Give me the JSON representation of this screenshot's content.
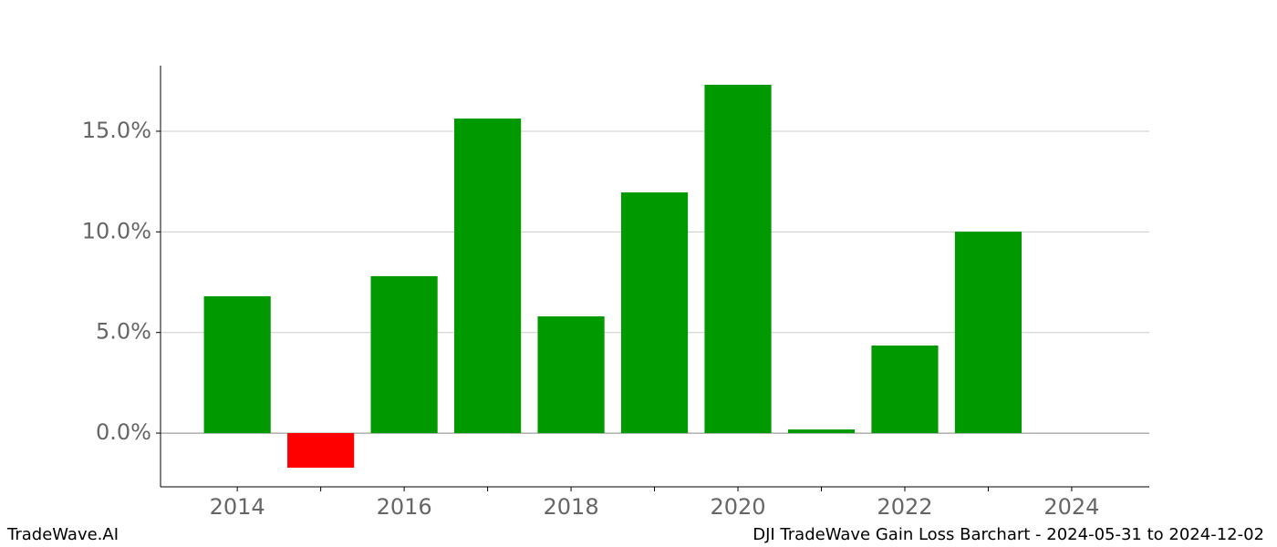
{
  "chart_data": {
    "type": "bar",
    "x": [
      2014,
      2015,
      2016,
      2017,
      2018,
      2019,
      2020,
      2021,
      2022,
      2023
    ],
    "values": [
      6.8,
      -1.72,
      7.8,
      15.63,
      5.8,
      11.96,
      17.31,
      0.18,
      4.35,
      10.01
    ],
    "color": "#009900",
    "negative_color": "#ff0000",
    "xlim": [
      2013.08,
      2024.93
    ],
    "xticks": [
      2014,
      2016,
      2018,
      2020,
      2022,
      2024
    ],
    "xminorticks": [
      2015,
      2017,
      2019,
      2021,
      2023
    ],
    "ylim": [
      -2.67,
      18.26
    ],
    "yticks": [
      {
        "value": 0,
        "label": "0.0%"
      },
      {
        "value": 5,
        "label": "5.0%"
      },
      {
        "value": 10,
        "label": "10.0%"
      },
      {
        "value": 15,
        "label": "15.0%"
      }
    ],
    "grid": true,
    "footer_left": "TradeWave.AI",
    "footer_right": "DJI TradeWave Gain Loss Barchart - 2024-05-31 to 2024-12-02"
  }
}
